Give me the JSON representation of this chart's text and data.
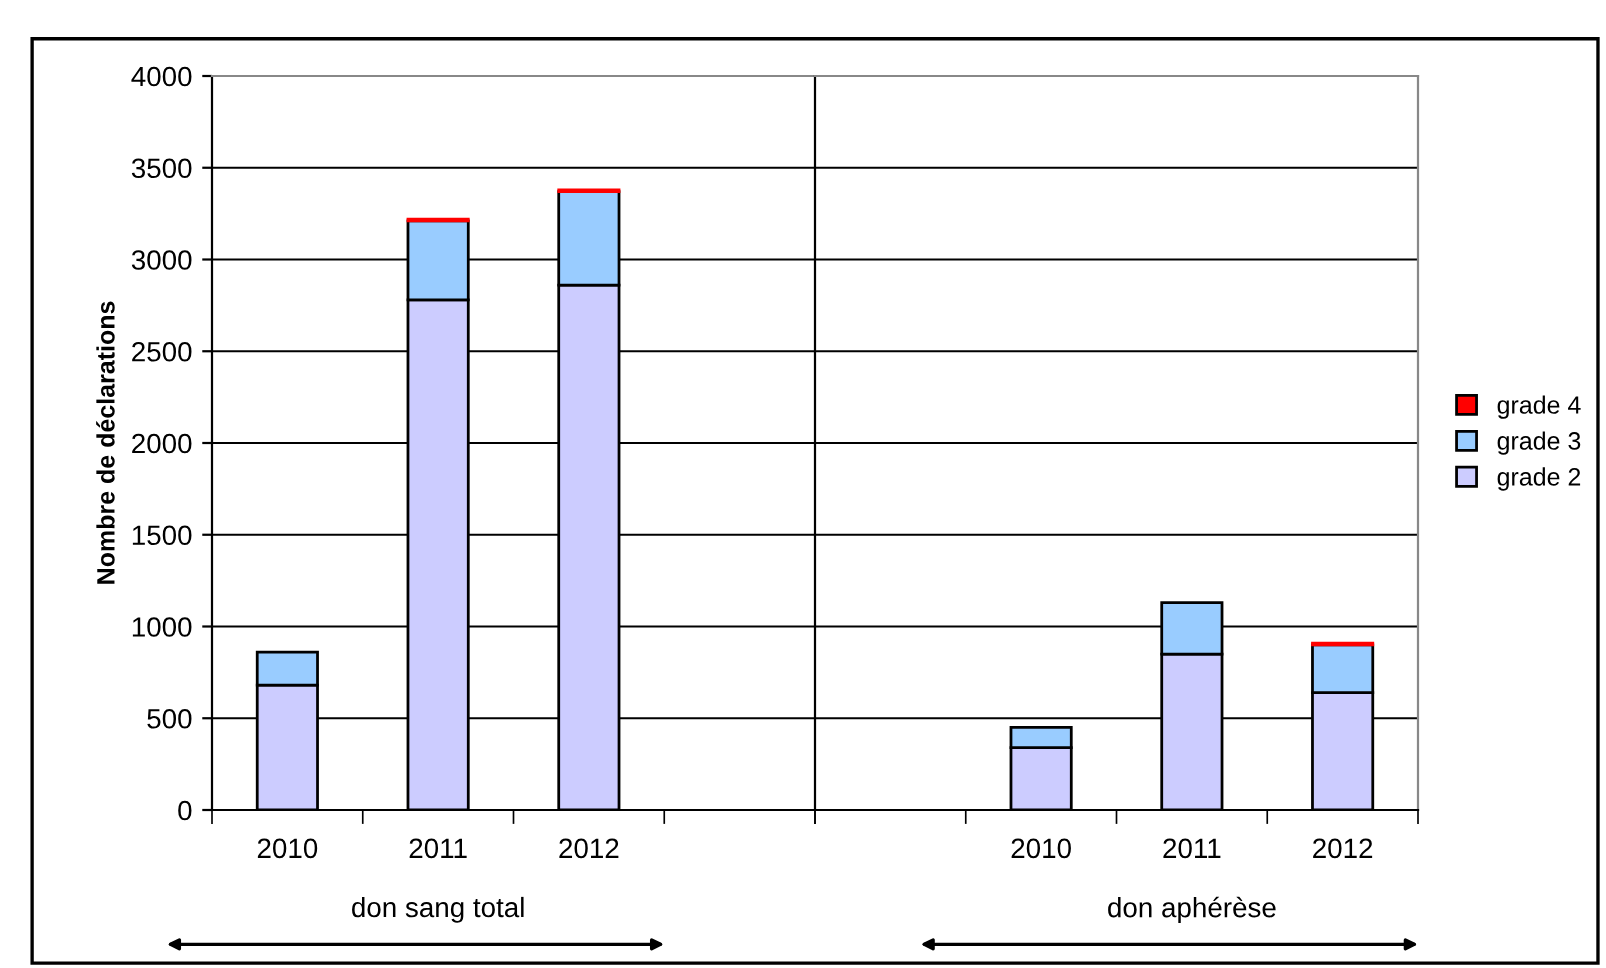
{
  "chart_data": [
    {
      "type": "bar",
      "stacked": true,
      "ylabel": "Nombre de déclarations",
      "categories": [
        "2010",
        "2011",
        "2012",
        null
      ],
      "series": [
        {
          "name": "grade 2",
          "color": "#ccccff",
          "values": [
            680,
            2780,
            2860,
            null
          ]
        },
        {
          "name": "grade 3",
          "color": "#99ccff",
          "values": [
            180,
            430,
            510,
            null
          ]
        },
        {
          "name": "grade 4",
          "color": "#ff0000",
          "values": [
            null,
            10,
            10,
            null
          ]
        }
      ],
      "ylim": [
        0,
        4000
      ],
      "yticks": [
        0,
        500,
        1000,
        1500,
        2000,
        2500,
        3000,
        3500,
        4000
      ],
      "grid": "y",
      "legend": "right",
      "annotations": [
        "don sang total"
      ]
    },
    {
      "type": "bar",
      "stacked": true,
      "categories": [
        null,
        "2010",
        "2011",
        "2012"
      ],
      "series": [
        {
          "color": "#ccccff",
          "values": [
            null,
            340,
            850,
            640
          ]
        },
        {
          "color": "#99ccff",
          "values": [
            null,
            110,
            280,
            260
          ]
        },
        {
          "color": "#ff0000",
          "values": [
            null,
            null,
            null,
            10
          ]
        }
      ],
      "ylim": [
        0,
        4000
      ],
      "yticks": [
        0,
        500,
        1000,
        1500,
        2000,
        2500,
        3000,
        3500,
        4000
      ],
      "grid": "y",
      "tick_labels": "x",
      "annotations": [
        "don aphérèse"
      ]
    }
  ]
}
